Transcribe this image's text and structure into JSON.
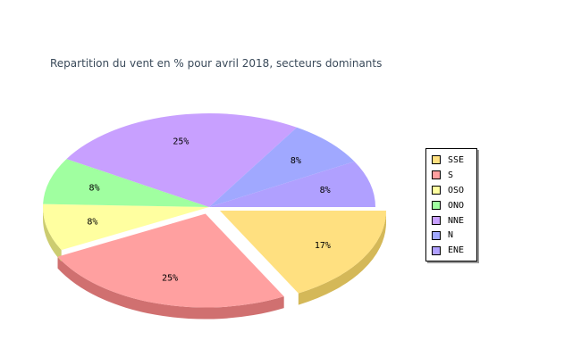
{
  "chart_data": {
    "type": "pie",
    "title": "Repartition du vent en % pour avril 2018, secteurs dominants",
    "is_3d": true,
    "exploded": [
      "SSE",
      "S"
    ],
    "legend_position": "right",
    "slices": [
      {
        "name": "SSE",
        "value": 17,
        "label": "17%",
        "color": "#FFE080",
        "side_color": "#D4B858"
      },
      {
        "name": "S",
        "value": 25,
        "label": "25%",
        "color": "#FFA0A0",
        "side_color": "#D07070"
      },
      {
        "name": "OSO",
        "value": 8,
        "label": "8%",
        "color": "#FFFFA0",
        "side_color": "#CCCC70"
      },
      {
        "name": "ONO",
        "value": 8,
        "label": "8%",
        "color": "#A0FFA0",
        "side_color": "#70CC70"
      },
      {
        "name": "NNE",
        "value": 25,
        "label": "25%",
        "color": "#C8A0FF",
        "side_color": "#9A78CC"
      },
      {
        "name": "N",
        "value": 8,
        "label": "8%",
        "color": "#A0A8FF",
        "side_color": "#7880CC"
      },
      {
        "name": "ENE",
        "value": 8,
        "label": "8%",
        "color": "#B0A0FF",
        "side_color": "#8878D0"
      }
    ]
  }
}
